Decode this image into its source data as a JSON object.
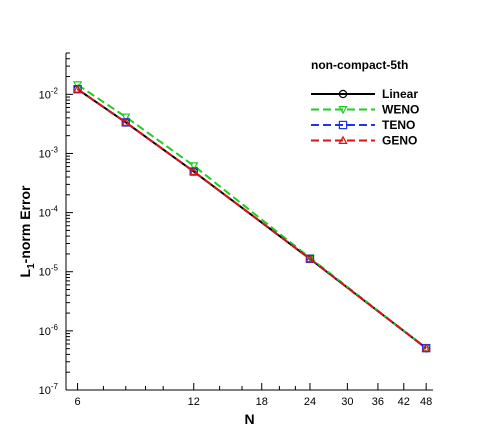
{
  "chart_data": {
    "type": "line",
    "xscale": "log",
    "yscale": "log",
    "xlabel": "N",
    "ylabel_main": "L",
    "ylabel_sub": "1",
    "ylabel_rest": "-norm Error",
    "xlim": [
      5.6,
      50
    ],
    "ylim": [
      1e-07,
      0.05
    ],
    "x_ticks": [
      {
        "value": 6,
        "label": "6"
      },
      {
        "value": 12,
        "label": "12"
      },
      {
        "value": 18,
        "label": "18"
      },
      {
        "value": 24,
        "label": "24"
      },
      {
        "value": 30,
        "label": "30"
      },
      {
        "value": 36,
        "label": "36"
      },
      {
        "value": 42,
        "label": "42"
      },
      {
        "value": 48,
        "label": "48"
      }
    ],
    "y_ticks": [
      {
        "value": 0.01,
        "base": "10",
        "exp": "-2"
      },
      {
        "value": 0.001,
        "base": "10",
        "exp": "-3"
      },
      {
        "value": 0.0001,
        "base": "10",
        "exp": "-4"
      },
      {
        "value": 1e-05,
        "base": "10",
        "exp": "-5"
      },
      {
        "value": 1e-06,
        "base": "10",
        "exp": "-6"
      },
      {
        "value": 1e-07,
        "base": "10",
        "exp": "-7"
      }
    ],
    "legend_title": "non-compact-5th",
    "legend_position": "top-right",
    "grid": false,
    "series": [
      {
        "name": "Linear",
        "color": "#000000",
        "dash": "",
        "marker": "circle",
        "x": [
          6,
          8,
          12,
          24,
          48
        ],
        "y": [
          0.0122,
          0.00335,
          0.000495,
          1.65e-05,
          5.1e-07
        ]
      },
      {
        "name": "WENO",
        "color": "#22cc22",
        "dash": "8,4",
        "marker": "triangle-down",
        "x": [
          6,
          8,
          12,
          24,
          48
        ],
        "y": [
          0.0145,
          0.00415,
          0.00062,
          1.72e-05,
          5.1e-07
        ]
      },
      {
        "name": "TENO",
        "color": "#2233ee",
        "dash": "8,4",
        "marker": "square",
        "x": [
          6,
          8,
          12,
          24,
          48
        ],
        "y": [
          0.0122,
          0.00335,
          0.000495,
          1.65e-05,
          5.1e-07
        ]
      },
      {
        "name": "GENO",
        "color": "#dd1111",
        "dash": "8,4",
        "marker": "triangle-up",
        "x": [
          6,
          8,
          12,
          24,
          48
        ],
        "y": [
          0.0122,
          0.00335,
          0.000495,
          1.65e-05,
          5.1e-07
        ]
      }
    ]
  }
}
